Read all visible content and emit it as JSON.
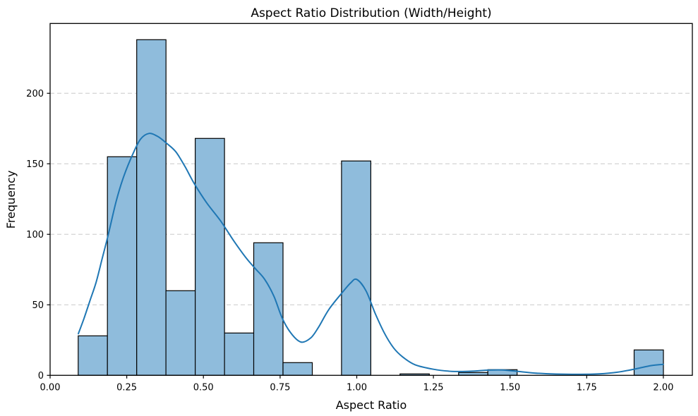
{
  "chart_data": {
    "type": "bar",
    "subtype": "histogram_with_kde",
    "title": "Aspect Ratio Distribution (Width/Height)",
    "xlabel": "Aspect Ratio",
    "ylabel": "Frequency",
    "bin_start": 0.0915,
    "bin_width": 0.09543,
    "counts": [
      28,
      155,
      238,
      60,
      168,
      30,
      94,
      9,
      0,
      152,
      0,
      1,
      0,
      2,
      4,
      0,
      0,
      0,
      0,
      18
    ],
    "series": [
      {
        "name": "KDE",
        "type": "line",
        "points": [
          [
            0.092,
            29.5
          ],
          [
            0.11,
            40
          ],
          [
            0.13,
            53
          ],
          [
            0.15,
            66
          ],
          [
            0.17,
            83
          ],
          [
            0.19,
            100
          ],
          [
            0.215,
            123
          ],
          [
            0.24,
            141
          ],
          [
            0.27,
            157
          ],
          [
            0.295,
            167.5
          ],
          [
            0.322,
            171.5
          ],
          [
            0.35,
            169.5
          ],
          [
            0.38,
            164.5
          ],
          [
            0.41,
            158.5
          ],
          [
            0.44,
            148
          ],
          [
            0.47,
            136
          ],
          [
            0.51,
            122.5
          ],
          [
            0.556,
            109.5
          ],
          [
            0.6,
            95
          ],
          [
            0.64,
            83
          ],
          [
            0.67,
            75.5
          ],
          [
            0.7,
            68
          ],
          [
            0.73,
            56
          ],
          [
            0.756,
            41
          ],
          [
            0.785,
            30
          ],
          [
            0.818,
            23.6
          ],
          [
            0.85,
            26.5
          ],
          [
            0.875,
            34
          ],
          [
            0.91,
            47
          ],
          [
            0.954,
            59
          ],
          [
            0.98,
            65.5
          ],
          [
            1.0,
            68
          ],
          [
            1.03,
            60
          ],
          [
            1.06,
            44
          ],
          [
            1.09,
            30
          ],
          [
            1.12,
            19.5
          ],
          [
            1.15,
            13
          ],
          [
            1.19,
            7.5
          ],
          [
            1.25,
            4.3
          ],
          [
            1.31,
            2.8
          ],
          [
            1.37,
            2.9
          ],
          [
            1.43,
            3.7
          ],
          [
            1.475,
            3.8
          ],
          [
            1.52,
            2.9
          ],
          [
            1.58,
            1.6
          ],
          [
            1.65,
            0.9
          ],
          [
            1.72,
            0.7
          ],
          [
            1.79,
            1.0
          ],
          [
            1.85,
            2.2
          ],
          [
            1.91,
            4.6
          ],
          [
            1.96,
            6.9
          ],
          [
            2.0,
            7.8
          ]
        ]
      }
    ],
    "x_ticks": {
      "values": [
        0.0,
        0.25,
        0.5,
        0.75,
        1.0,
        1.25,
        1.5,
        1.75,
        2.0
      ],
      "labels": [
        "0.00",
        "0.25",
        "0.50",
        "0.75",
        "1.00",
        "1.25",
        "1.50",
        "1.75",
        "2.00"
      ]
    },
    "y_ticks": {
      "values": [
        0,
        50,
        100,
        150,
        200
      ],
      "labels": [
        "0",
        "50",
        "100",
        "150",
        "200"
      ]
    },
    "xlim": [
      0.0,
      2.0945
    ],
    "ylim": [
      0,
      249.5
    ],
    "grid": "horizontal-dashed",
    "legend": "none",
    "colors": {
      "bar_fill": "#8fbcdc",
      "bar_edge": "#000000",
      "kde_line": "#1f77b4",
      "grid": "#c9c9c9",
      "spine": "#000000",
      "background": "#ffffff"
    }
  }
}
